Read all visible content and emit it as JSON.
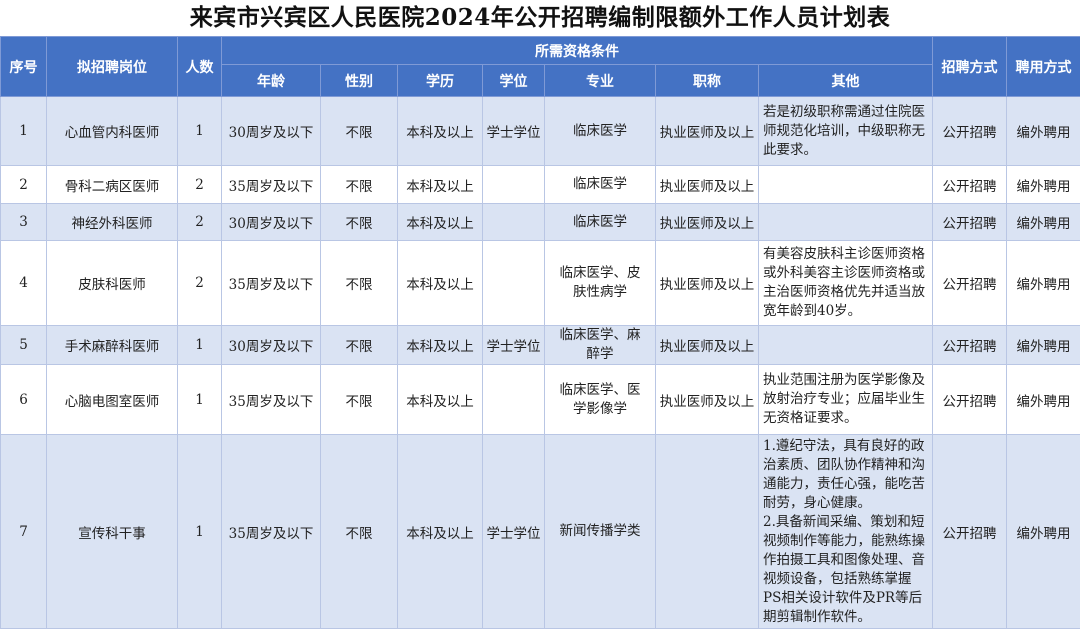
{
  "title": "来宾市兴宾区人民医院2024年公开招聘编制限额外工作人员计划表",
  "headers": {
    "seq": "序号",
    "position": "拟招聘岗位",
    "count": "人数",
    "qualifications": "所需资格条件",
    "age": "年龄",
    "gender": "性别",
    "education": "学历",
    "degree": "学位",
    "major": "专业",
    "title": "职称",
    "other": "其他",
    "method": "招聘方式",
    "employment": "聘用方式"
  },
  "rows": [
    {
      "seq": "1",
      "position": "心血管内科医师",
      "count": "1",
      "age": "30周岁及以下",
      "gender": "不限",
      "education": "本科及以上",
      "degree": "学士学位",
      "major": "临床医学",
      "title": "执业医师及以上",
      "other": "若是初级职称需通过住院医师规范化培训，中级职称无此要求。",
      "method": "公开招聘",
      "employment": "编外聘用"
    },
    {
      "seq": "2",
      "position": "骨科二病区医师",
      "count": "2",
      "age": "35周岁及以下",
      "gender": "不限",
      "education": "本科及以上",
      "degree": "",
      "major": "临床医学",
      "title": "执业医师及以上",
      "other": "",
      "method": "公开招聘",
      "employment": "编外聘用"
    },
    {
      "seq": "3",
      "position": "神经外科医师",
      "count": "2",
      "age": "30周岁及以下",
      "gender": "不限",
      "education": "本科及以上",
      "degree": "",
      "major": "临床医学",
      "title": "执业医师及以上",
      "other": "",
      "method": "公开招聘",
      "employment": "编外聘用"
    },
    {
      "seq": "4",
      "position": "皮肤科医师",
      "count": "2",
      "age": "35周岁及以下",
      "gender": "不限",
      "education": "本科及以上",
      "degree": "",
      "major": "临床医学、皮肤性病学",
      "title": "执业医师及以上",
      "other": "有美容皮肤科主诊医师资格或外科美容主诊医师资格或主治医师资格优先并适当放宽年龄到40岁。",
      "method": "公开招聘",
      "employment": "编外聘用"
    },
    {
      "seq": "5",
      "position": "手术麻醉科医师",
      "count": "1",
      "age": "30周岁及以下",
      "gender": "不限",
      "education": "本科及以上",
      "degree": "学士学位",
      "major": "临床医学、麻醉学",
      "title": "执业医师及以上",
      "other": "",
      "method": "公开招聘",
      "employment": "编外聘用"
    },
    {
      "seq": "6",
      "position": "心脑电图室医师",
      "count": "1",
      "age": "35周岁及以下",
      "gender": "不限",
      "education": "本科及以上",
      "degree": "",
      "major": "临床医学、医学影像学",
      "title": "执业医师及以上",
      "other": "执业范围注册为医学影像及放射治疗专业；应届毕业生无资格证要求。",
      "method": "公开招聘",
      "employment": "编外聘用"
    },
    {
      "seq": "7",
      "position": "宣传科干事",
      "count": "1",
      "age": "35周岁及以下",
      "gender": "不限",
      "education": "本科及以上",
      "degree": "学士学位",
      "major": "新闻传播学类",
      "title": "",
      "other": "1.遵纪守法，具有良好的政治素质、团队协作精神和沟通能力，责任心强，能吃苦耐劳，身心健康。\n2.具备新闻采编、策划和短视频制作等能力，能熟练操作拍摄工具和图像处理、音视频设备，包括熟练掌握PS相关设计软件及PR等后期剪辑制作软件。",
      "method": "公开招聘",
      "employment": "编外聘用"
    }
  ],
  "colors": {
    "header": "#4472c4",
    "row_alt": "#dae3f3"
  }
}
